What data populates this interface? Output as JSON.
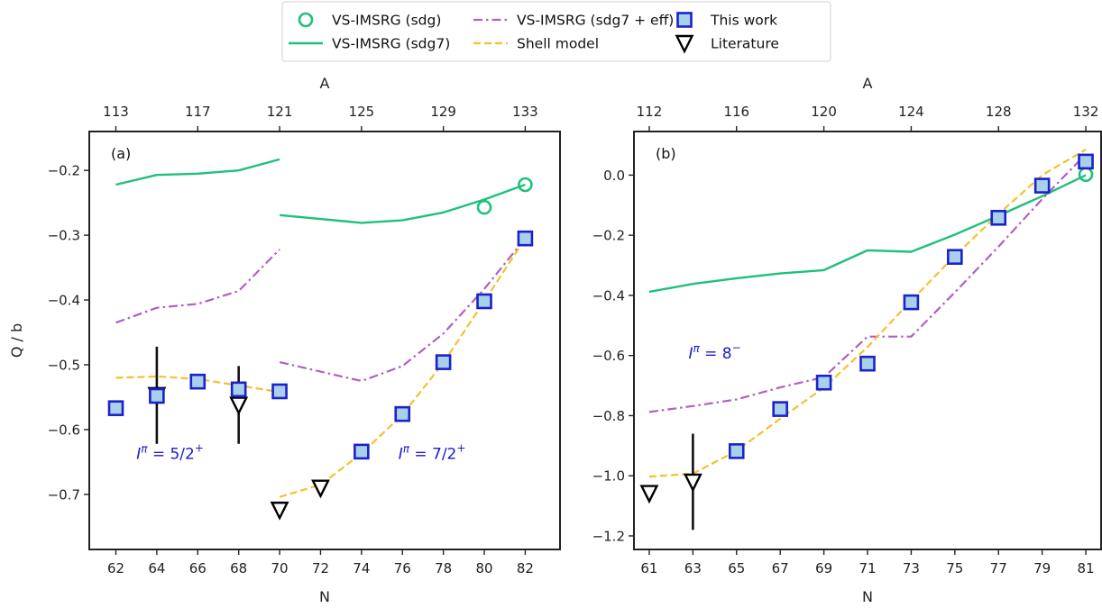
{
  "legend": {
    "items": [
      {
        "key": "vs_sdg",
        "label": "VS-IMSRG (sdg)"
      },
      {
        "key": "vs_eff",
        "label": "VS-IMSRG (sdg7 + eff)"
      },
      {
        "key": "work",
        "label": "This work"
      },
      {
        "key": "vs_sdg7",
        "label": "VS-IMSRG (sdg7)"
      },
      {
        "key": "shell",
        "label": "Shell model"
      },
      {
        "key": "lit",
        "label": "Literature"
      }
    ],
    "placement": "top-center, outside plot area"
  },
  "colors": {
    "vs_sdg": "#1fc17a",
    "vs_sdg7": "#1fc17a",
    "vs_eff": "#b060c0",
    "shell": "#f5c030",
    "work_face": "#a8d0ea",
    "work_edge": "#1a22cc",
    "lit": "#000000",
    "annotation": "#1a1acc"
  },
  "chart_data": [
    {
      "type": "line",
      "panel_label": "(a)",
      "xlabel": "N",
      "ylabel": "Q / b",
      "top_xlabel": "A",
      "xlim": [
        60.7,
        83.7
      ],
      "ylim": [
        -0.785,
        -0.14
      ],
      "x_ticks": [
        62,
        64,
        66,
        68,
        70,
        72,
        74,
        76,
        78,
        80,
        82
      ],
      "y_ticks": [
        -0.7,
        -0.6,
        -0.5,
        -0.4,
        -0.3,
        -0.2
      ],
      "y_tick_labels": [
        "−0.7",
        "−0.6",
        "−0.5",
        "−0.4",
        "−0.3",
        "−0.2"
      ],
      "top_ticks_N": [
        62,
        66,
        70,
        74,
        78,
        82
      ],
      "top_ticks_A": [
        "113",
        "117",
        "121",
        "125",
        "129",
        "133"
      ],
      "annotations": [
        {
          "text_main": "I",
          "text_sup1": "π",
          "text_mid": " = 5/2",
          "text_sup2": "+",
          "x": 63.0,
          "y": -0.645
        },
        {
          "text_main": "I",
          "text_sup1": "π",
          "text_mid": " = 7/2",
          "text_sup2": "+",
          "x": 75.8,
          "y": -0.645
        }
      ],
      "series": [
        {
          "key": "vs_sdg7",
          "style": "solid",
          "segments": [
            {
              "x": [
                62,
                64,
                66,
                68,
                70
              ],
              "y": [
                -0.222,
                -0.207,
                -0.205,
                -0.2,
                -0.183
              ]
            },
            {
              "x": [
                70,
                74,
                76,
                78,
                80,
                82
              ],
              "y": [
                -0.269,
                -0.281,
                -0.277,
                -0.265,
                -0.245,
                -0.222
              ]
            }
          ]
        },
        {
          "key": "vs_eff",
          "style": "dashdot",
          "segments": [
            {
              "x": [
                62,
                64,
                66,
                68,
                70
              ],
              "y": [
                -0.435,
                -0.412,
                -0.406,
                -0.386,
                -0.322
              ]
            },
            {
              "x": [
                70,
                74,
                76,
                78,
                80,
                82
              ],
              "y": [
                -0.496,
                -0.525,
                -0.502,
                -0.452,
                -0.383,
                -0.305
              ]
            }
          ]
        },
        {
          "key": "shell",
          "style": "dashed",
          "segments": [
            {
              "x": [
                62,
                64,
                66,
                68,
                70
              ],
              "y": [
                -0.52,
                -0.518,
                -0.522,
                -0.532,
                -0.542
              ]
            },
            {
              "x": [
                70,
                72,
                74,
                76,
                78,
                80,
                82
              ],
              "y": [
                -0.704,
                -0.685,
                -0.637,
                -0.577,
                -0.497,
                -0.402,
                -0.305
              ]
            }
          ]
        },
        {
          "key": "vs_sdg",
          "style": "circle",
          "x": [
            80,
            82
          ],
          "y": [
            -0.257,
            -0.222
          ]
        },
        {
          "key": "work",
          "style": "square",
          "x": [
            62,
            64,
            66,
            68,
            70,
            74,
            76,
            78,
            80,
            82
          ],
          "y": [
            -0.567,
            -0.548,
            -0.526,
            -0.538,
            -0.541,
            -0.634,
            -0.576,
            -0.496,
            -0.402,
            -0.305
          ]
        },
        {
          "key": "lit",
          "style": "triangle",
          "x": [
            64,
            68,
            70,
            72
          ],
          "y": [
            -0.547,
            -0.562,
            -0.724,
            -0.69
          ],
          "err": [
            0.075,
            0.06,
            0.0,
            0.0
          ]
        }
      ]
    },
    {
      "type": "line",
      "panel_label": "(b)",
      "xlabel": "N",
      "ylabel": "",
      "top_xlabel": "A",
      "xlim": [
        60.3,
        81.7
      ],
      "ylim": [
        -1.245,
        0.145
      ],
      "x_ticks": [
        61,
        63,
        65,
        67,
        69,
        71,
        73,
        75,
        77,
        79,
        81
      ],
      "y_ticks": [
        -1.2,
        -1.0,
        -0.8,
        -0.6,
        -0.4,
        -0.2,
        0.0
      ],
      "y_tick_labels": [
        "−1.2",
        "−1.0",
        "−0.8",
        "−0.6",
        "−0.4",
        "−0.2",
        "0.0"
      ],
      "top_ticks_N": [
        61,
        65,
        69,
        73,
        77,
        81
      ],
      "top_ticks_A": [
        "112",
        "116",
        "120",
        "124",
        "128",
        "132"
      ],
      "annotations": [
        {
          "text_main": "I",
          "text_sup1": "π",
          "text_mid": " = 8",
          "text_sup2": "−",
          "x": 62.8,
          "y": -0.61
        }
      ],
      "series": [
        {
          "key": "vs_sdg7",
          "style": "solid",
          "segments": [
            {
              "x": [
                61,
                63,
                65,
                67,
                69,
                71,
                73,
                75,
                77,
                79,
                81
              ],
              "y": [
                -0.388,
                -0.362,
                -0.343,
                -0.327,
                -0.316,
                -0.25,
                -0.255,
                -0.198,
                -0.135,
                -0.07,
                0.0
              ]
            }
          ]
        },
        {
          "key": "vs_eff",
          "style": "dashdot",
          "segments": [
            {
              "x": [
                61,
                63,
                65,
                67,
                69,
                71,
                73,
                75,
                77,
                79,
                81
              ],
              "y": [
                -0.788,
                -0.768,
                -0.746,
                -0.706,
                -0.672,
                -0.537,
                -0.537,
                -0.39,
                -0.238,
                -0.08,
                0.07
              ]
            }
          ]
        },
        {
          "key": "shell",
          "style": "dashed",
          "segments": [
            {
              "x": [
                61,
                63,
                65,
                67,
                69,
                71,
                73,
                75,
                77,
                79,
                81
              ],
              "y": [
                -1.003,
                -0.993,
                -0.917,
                -0.81,
                -0.707,
                -0.572,
                -0.418,
                -0.268,
                -0.13,
                0.0,
                0.085
              ]
            }
          ]
        },
        {
          "key": "vs_sdg",
          "style": "circle",
          "x": [
            81
          ],
          "y": [
            0.002
          ]
        },
        {
          "key": "work",
          "style": "square",
          "x": [
            65,
            67,
            69,
            71,
            73,
            75,
            77,
            79,
            81
          ],
          "y": [
            -0.918,
            -0.778,
            -0.69,
            -0.627,
            -0.423,
            -0.272,
            -0.142,
            -0.035,
            0.045
          ]
        },
        {
          "key": "lit",
          "style": "triangle",
          "x": [
            61,
            63
          ],
          "y": [
            -1.058,
            -1.02
          ],
          "err": [
            0.0,
            0.16
          ]
        }
      ]
    }
  ]
}
